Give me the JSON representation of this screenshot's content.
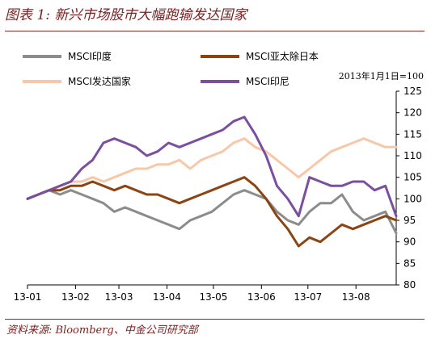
{
  "title": "图表 1: 新兴市场股市大幅跑输发达国家",
  "source": "资料来源: Bloomberg、中金公司研究部",
  "chart_data": {
    "type": "line",
    "note": "2013年1月1日=100",
    "legend_position": "top-left",
    "grid": false,
    "x_ticks": [
      "13-01",
      "13-02",
      "13-03",
      "13-04",
      "13-05",
      "13-06",
      "13-07",
      "13-08"
    ],
    "x_start": "2013-01-01",
    "x_end": "2013-08-27",
    "ylim": [
      80,
      125
    ],
    "y_ticks": [
      80,
      85,
      90,
      95,
      100,
      105,
      110,
      115,
      120,
      125
    ],
    "series": [
      {
        "name": "MSCI印度",
        "color": "#8c8c8c",
        "points": [
          [
            "2013-01-01",
            100
          ],
          [
            "2013-01-08",
            101
          ],
          [
            "2013-01-15",
            102
          ],
          [
            "2013-01-22",
            101
          ],
          [
            "2013-01-29",
            102
          ],
          [
            "2013-02-05",
            101
          ],
          [
            "2013-02-12",
            100
          ],
          [
            "2013-02-19",
            99
          ],
          [
            "2013-02-26",
            97
          ],
          [
            "2013-03-05",
            98
          ],
          [
            "2013-03-12",
            97
          ],
          [
            "2013-03-19",
            96
          ],
          [
            "2013-03-26",
            95
          ],
          [
            "2013-04-02",
            94
          ],
          [
            "2013-04-09",
            93
          ],
          [
            "2013-04-16",
            95
          ],
          [
            "2013-04-23",
            96
          ],
          [
            "2013-04-30",
            97
          ],
          [
            "2013-05-07",
            99
          ],
          [
            "2013-05-14",
            101
          ],
          [
            "2013-05-21",
            102
          ],
          [
            "2013-05-28",
            101
          ],
          [
            "2013-06-04",
            100
          ],
          [
            "2013-06-11",
            97
          ],
          [
            "2013-06-18",
            95
          ],
          [
            "2013-06-25",
            94
          ],
          [
            "2013-07-02",
            97
          ],
          [
            "2013-07-09",
            99
          ],
          [
            "2013-07-16",
            99
          ],
          [
            "2013-07-23",
            101
          ],
          [
            "2013-07-30",
            97
          ],
          [
            "2013-08-06",
            95
          ],
          [
            "2013-08-13",
            96
          ],
          [
            "2013-08-20",
            97
          ],
          [
            "2013-08-27",
            92
          ]
        ]
      },
      {
        "name": "MSCI亚太除日本",
        "color": "#8b4513",
        "points": [
          [
            "2013-01-01",
            100
          ],
          [
            "2013-01-08",
            101
          ],
          [
            "2013-01-15",
            102
          ],
          [
            "2013-01-22",
            102
          ],
          [
            "2013-01-29",
            103
          ],
          [
            "2013-02-05",
            103
          ],
          [
            "2013-02-12",
            104
          ],
          [
            "2013-02-19",
            103
          ],
          [
            "2013-02-26",
            102
          ],
          [
            "2013-03-05",
            103
          ],
          [
            "2013-03-12",
            102
          ],
          [
            "2013-03-19",
            101
          ],
          [
            "2013-03-26",
            101
          ],
          [
            "2013-04-02",
            100
          ],
          [
            "2013-04-09",
            99
          ],
          [
            "2013-04-16",
            100
          ],
          [
            "2013-04-23",
            101
          ],
          [
            "2013-04-30",
            102
          ],
          [
            "2013-05-07",
            103
          ],
          [
            "2013-05-14",
            104
          ],
          [
            "2013-05-21",
            105
          ],
          [
            "2013-05-28",
            103
          ],
          [
            "2013-06-04",
            100
          ],
          [
            "2013-06-11",
            96
          ],
          [
            "2013-06-18",
            93
          ],
          [
            "2013-06-25",
            89
          ],
          [
            "2013-07-02",
            91
          ],
          [
            "2013-07-09",
            90
          ],
          [
            "2013-07-16",
            92
          ],
          [
            "2013-07-23",
            94
          ],
          [
            "2013-07-30",
            93
          ],
          [
            "2013-08-06",
            94
          ],
          [
            "2013-08-13",
            95
          ],
          [
            "2013-08-20",
            96
          ],
          [
            "2013-08-27",
            95
          ]
        ]
      },
      {
        "name": "MSCI发达国家",
        "color": "#f7c8a8",
        "points": [
          [
            "2013-01-01",
            100
          ],
          [
            "2013-01-08",
            101
          ],
          [
            "2013-01-15",
            102
          ],
          [
            "2013-01-22",
            103
          ],
          [
            "2013-01-29",
            104
          ],
          [
            "2013-02-05",
            104
          ],
          [
            "2013-02-12",
            105
          ],
          [
            "2013-02-19",
            104
          ],
          [
            "2013-02-26",
            105
          ],
          [
            "2013-03-05",
            106
          ],
          [
            "2013-03-12",
            107
          ],
          [
            "2013-03-19",
            107
          ],
          [
            "2013-03-26",
            108
          ],
          [
            "2013-04-02",
            108
          ],
          [
            "2013-04-09",
            109
          ],
          [
            "2013-04-16",
            107
          ],
          [
            "2013-04-23",
            109
          ],
          [
            "2013-04-30",
            110
          ],
          [
            "2013-05-07",
            111
          ],
          [
            "2013-05-14",
            113
          ],
          [
            "2013-05-21",
            114
          ],
          [
            "2013-05-28",
            112
          ],
          [
            "2013-06-04",
            111
          ],
          [
            "2013-06-11",
            109
          ],
          [
            "2013-06-18",
            107
          ],
          [
            "2013-06-25",
            105
          ],
          [
            "2013-07-02",
            107
          ],
          [
            "2013-07-09",
            109
          ],
          [
            "2013-07-16",
            111
          ],
          [
            "2013-07-23",
            112
          ],
          [
            "2013-07-30",
            113
          ],
          [
            "2013-08-06",
            114
          ],
          [
            "2013-08-13",
            113
          ],
          [
            "2013-08-20",
            112
          ],
          [
            "2013-08-27",
            112
          ]
        ]
      },
      {
        "name": "MSCI印尼",
        "color": "#7b4fa0",
        "points": [
          [
            "2013-01-01",
            100
          ],
          [
            "2013-01-08",
            101
          ],
          [
            "2013-01-15",
            102
          ],
          [
            "2013-01-22",
            103
          ],
          [
            "2013-01-29",
            104
          ],
          [
            "2013-02-05",
            107
          ],
          [
            "2013-02-12",
            109
          ],
          [
            "2013-02-19",
            113
          ],
          [
            "2013-02-26",
            114
          ],
          [
            "2013-03-05",
            113
          ],
          [
            "2013-03-12",
            112
          ],
          [
            "2013-03-19",
            110
          ],
          [
            "2013-03-26",
            111
          ],
          [
            "2013-04-02",
            113
          ],
          [
            "2013-04-09",
            112
          ],
          [
            "2013-04-16",
            113
          ],
          [
            "2013-04-23",
            114
          ],
          [
            "2013-04-30",
            115
          ],
          [
            "2013-05-07",
            116
          ],
          [
            "2013-05-14",
            118
          ],
          [
            "2013-05-21",
            119
          ],
          [
            "2013-05-28",
            115
          ],
          [
            "2013-06-04",
            110
          ],
          [
            "2013-06-11",
            103
          ],
          [
            "2013-06-18",
            100
          ],
          [
            "2013-06-25",
            96
          ],
          [
            "2013-07-02",
            105
          ],
          [
            "2013-07-09",
            104
          ],
          [
            "2013-07-16",
            103
          ],
          [
            "2013-07-23",
            103
          ],
          [
            "2013-07-30",
            104
          ],
          [
            "2013-08-06",
            104
          ],
          [
            "2013-08-13",
            102
          ],
          [
            "2013-08-20",
            103
          ],
          [
            "2013-08-27",
            96
          ]
        ]
      }
    ]
  }
}
